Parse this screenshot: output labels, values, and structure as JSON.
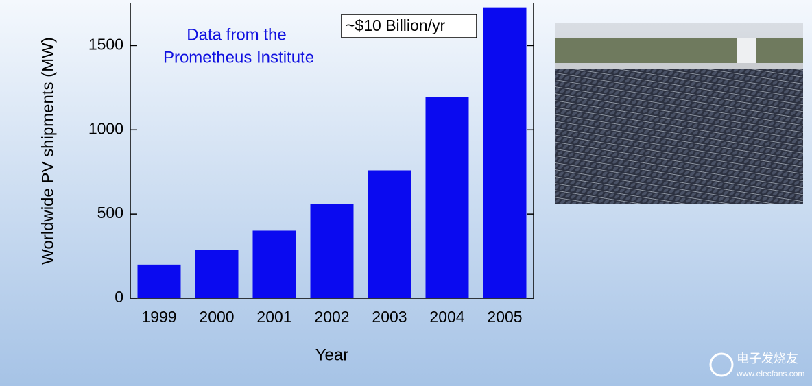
{
  "chart_data": {
    "type": "bar",
    "categories": [
      "1999",
      "2000",
      "2001",
      "2002",
      "2003",
      "2004",
      "2005"
    ],
    "values": [
      200,
      288,
      401,
      560,
      759,
      1195,
      1727
    ],
    "color": "#0a0af0",
    "ylim": [
      0,
      1750
    ],
    "yticks": [
      0,
      500,
      1000,
      1500
    ],
    "grid": false,
    "y_label": "Worldwide PV shipments (MW)",
    "x_label": "Year",
    "annotations": [
      "Data from the",
      "Prometheus Institute"
    ],
    "boxed_annotation": "~$10 Billion/yr"
  },
  "watermark": {
    "brand": "电子发烧友",
    "url": "www.elecfans.com"
  }
}
